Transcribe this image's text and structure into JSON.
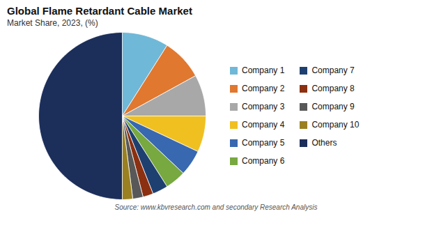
{
  "chart_data": {
    "type": "pie",
    "title": "Global Flame Retardant Cable Market",
    "subtitle": "Market Share, 2023, (%)",
    "source": "Source: www.kbvresearch.com and secondary Research Analysis",
    "categories": [
      "Company 1",
      "Company 2",
      "Company 3",
      "Company 4",
      "Company 5",
      "Company 6",
      "Company 7",
      "Company 8",
      "Company 9",
      "Company 10",
      "Others"
    ],
    "values": [
      9,
      8,
      8,
      7,
      5,
      4,
      3,
      2,
      2,
      2,
      50
    ],
    "colors": [
      "#70b8d8",
      "#e07830",
      "#a8a8a8",
      "#f0c020",
      "#3868b0",
      "#78a840",
      "#1e4070",
      "#8b3010",
      "#585858",
      "#9a8020",
      "#1c2e5a"
    ],
    "legend": "upper right"
  }
}
